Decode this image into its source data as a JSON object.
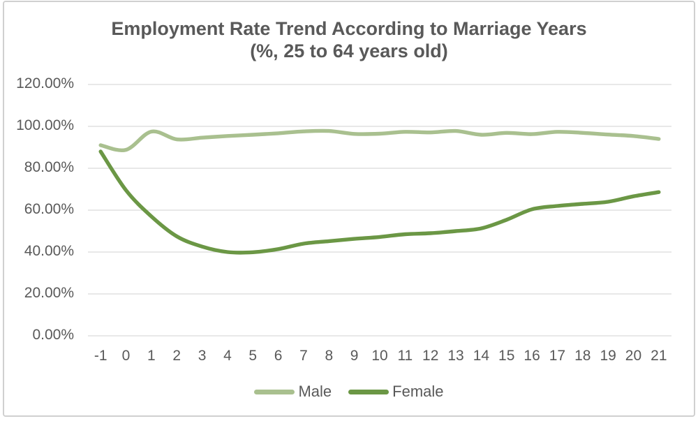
{
  "chart_data": {
    "type": "line",
    "title": "Employment Rate Trend According to Marriage Years",
    "subtitle": "(%, 25 to 64 years old)",
    "categories": [
      -1,
      0,
      1,
      2,
      3,
      4,
      5,
      6,
      7,
      8,
      9,
      10,
      11,
      12,
      13,
      14,
      15,
      16,
      17,
      18,
      19,
      20,
      21
    ],
    "series": [
      {
        "name": "Male",
        "color": "#a9c08f",
        "values": [
          91,
          88.8,
          97.5,
          93.8,
          94.6,
          95.4,
          96,
          96.7,
          97.6,
          97.8,
          96.4,
          96.5,
          97.4,
          97.1,
          97.8,
          96,
          96.9,
          96.3,
          97.4,
          96.9,
          96.1,
          95.4,
          94
        ]
      },
      {
        "name": "Female",
        "color": "#6b9745",
        "values": [
          88,
          69.5,
          57,
          47.5,
          42.6,
          40,
          39.9,
          41.4,
          44,
          45.2,
          46.3,
          47.2,
          48.5,
          49,
          50,
          51.3,
          55.4,
          60.4,
          62,
          63,
          64,
          66.6,
          68.6
        ]
      }
    ],
    "y_ticks": [
      "0.00%",
      "20.00%",
      "40.00%",
      "60.00%",
      "80.00%",
      "100.00%",
      "120.00%"
    ],
    "ylim": [
      0,
      120
    ],
    "xlabel": "",
    "ylabel": "",
    "grid": "horizontal",
    "legend_position": "bottom",
    "line_smoothing": true,
    "gridline_color": "#d9d9d9",
    "text_color": "#595959"
  }
}
